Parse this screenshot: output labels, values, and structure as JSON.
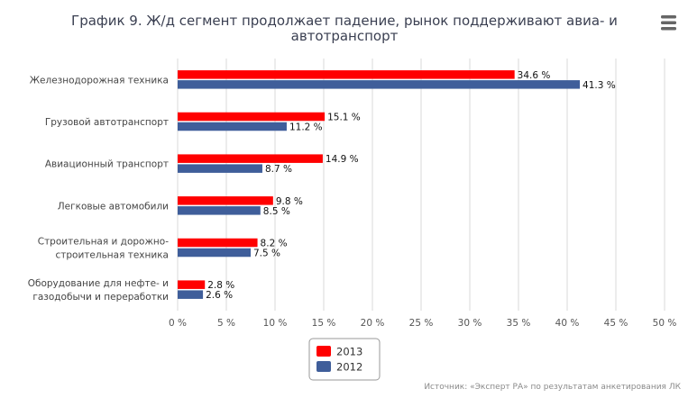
{
  "chart_data": {
    "type": "bar",
    "orientation": "horizontal",
    "title": "График 9. Ж/д сегмент продолжает падение, рынок поддерживают авиа- и автотранспорт",
    "title_lines": [
      "График 9. Ж/д сегмент продолжает падение, рынок поддерживают авиа- и",
      "автотранспорт"
    ],
    "categories": [
      "Железнодорожная техника",
      "Грузовой автотранспорт",
      "Авиационный транспорт",
      "Легковые автомобили",
      "Строительная и дорожно-строительная техника",
      "Оборудование для нефте- и газодобычи и переработки"
    ],
    "category_lines": [
      [
        "Железнодорожная техника"
      ],
      [
        "Грузовой автотранспорт"
      ],
      [
        "Авиационный транспорт"
      ],
      [
        "Легковые автомобили"
      ],
      [
        "Строительная и дорожно-",
        "строительная техника"
      ],
      [
        "Оборудование для нефте- и",
        "газодобычи и переработки"
      ]
    ],
    "series": [
      {
        "name": "2013",
        "color": "#ff0000",
        "values": [
          34.6,
          15.1,
          14.9,
          9.8,
          8.2,
          2.8
        ],
        "labels": [
          "34.6 %",
          "15.1 %",
          "14.9 %",
          "9.8 %",
          "8.2 %",
          "2.8 %"
        ]
      },
      {
        "name": "2012",
        "color": "#3f5e9a",
        "values": [
          41.3,
          11.2,
          8.7,
          8.5,
          7.5,
          2.6
        ],
        "labels": [
          "41.3 %",
          "11.2 %",
          "8.7 %",
          "8.5 %",
          "7.5 %",
          "2.6 %"
        ]
      }
    ],
    "xlim": [
      0,
      50
    ],
    "ticks": [
      0,
      5,
      10,
      15,
      20,
      25,
      30,
      35,
      40,
      45,
      50
    ],
    "tick_labels": [
      "0 %",
      "5 %",
      "10 %",
      "15 %",
      "20 %",
      "25 %",
      "30 %",
      "35 %",
      "40 %",
      "45 %",
      "50 %"
    ],
    "grid": true,
    "legend_position": "bottom-center",
    "source": "Источник: «Эксперт РА» по результатам анкетирования ЛК"
  },
  "menu_icon": "hamburger-menu-icon"
}
